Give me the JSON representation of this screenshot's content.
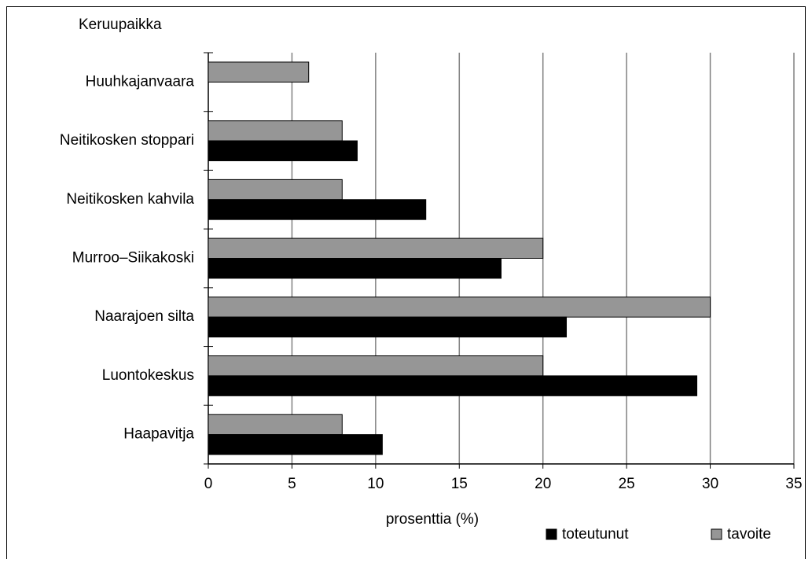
{
  "chart_data": {
    "type": "hbar",
    "y_axis_title": "Keruupaikka",
    "x_axis_title": "prosenttia (%)",
    "categories": [
      "Huuhkajanvaara",
      "Neitikosken stoppari",
      "Neitikosken kahvila",
      "Murroo–Siikakoski",
      "Naarajoen silta",
      "Luontokeskus",
      "Haapavitja"
    ],
    "series": [
      {
        "name": "tavoite",
        "color": "#969696",
        "values": [
          6,
          8,
          8,
          20,
          30,
          20,
          8
        ]
      },
      {
        "name": "toteutunut",
        "color": "#000000",
        "values": [
          null,
          8.9,
          13,
          17.5,
          21.4,
          29.2,
          10.4
        ]
      }
    ],
    "legend_order": [
      1,
      0
    ],
    "legend": "bottom-right",
    "xlim": [
      0,
      35
    ],
    "xticks": [
      0,
      5,
      10,
      15,
      20,
      25,
      30,
      35
    ],
    "grid": true
  }
}
